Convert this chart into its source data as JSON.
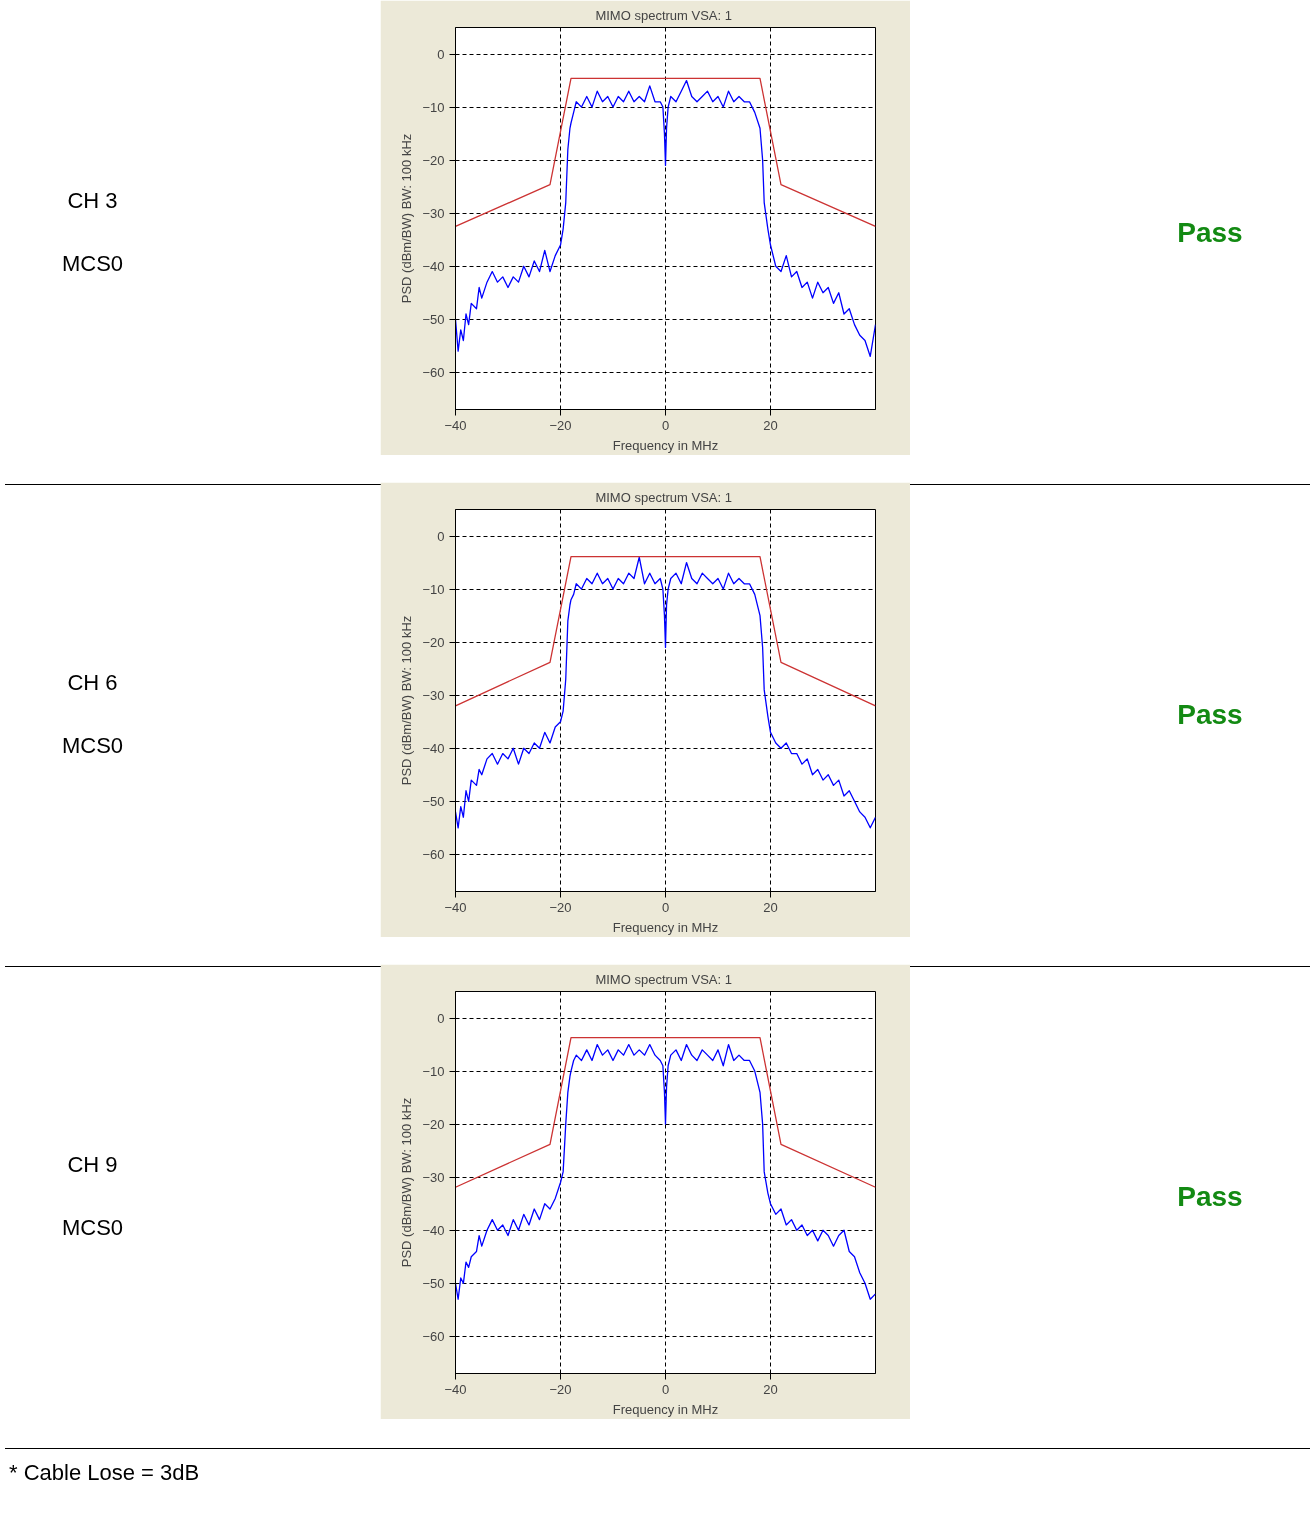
{
  "chart_data": [
    {
      "type": "line",
      "title": "MIMO spectrum VSA:  1",
      "xlabel": "Frequency in MHz",
      "ylabel": "PSD (dBm/BW) BW: 100 kHz",
      "xlim": [
        -40,
        40
      ],
      "ylim": [
        -67,
        5
      ],
      "xticks": [
        -40,
        -20,
        0,
        20
      ],
      "yticks": [
        0,
        -10,
        -20,
        -30,
        -40,
        -50,
        -60
      ],
      "grid": true,
      "annotations": [
        "CH 3",
        "MCS0",
        "Pass"
      ],
      "series": [
        {
          "color": "#0000ff",
          "x": [
            -40,
            -39.5,
            -39,
            -38.5,
            -38,
            -37.5,
            -37,
            -36,
            -35.5,
            -35,
            -34,
            -33,
            -32,
            -31,
            -30,
            -29,
            -28,
            -27,
            -26,
            -25,
            -24,
            -23,
            -22,
            -21,
            -20,
            -19.5,
            -19,
            -18.6,
            -18.2,
            -18,
            -17.5,
            -17,
            -16,
            -15,
            -14,
            -13,
            -12,
            -11,
            -10,
            -9,
            -8,
            -7,
            -6,
            -5,
            -4,
            -3,
            -2,
            -1,
            -0.5,
            -0.2,
            0,
            0.2,
            0.5,
            1,
            2,
            3,
            4,
            5,
            6,
            7,
            8,
            9,
            10,
            11,
            12,
            13,
            14,
            15,
            16,
            17,
            18,
            18.5,
            18.8,
            19.5,
            20,
            21,
            22,
            23,
            24,
            25,
            26,
            27,
            28,
            29,
            30,
            31,
            32,
            33,
            34,
            35,
            36,
            37,
            38,
            39,
            40
          ],
          "values": [
            -50,
            -56,
            -52,
            -54,
            -49,
            -51,
            -47,
            -48,
            -44,
            -46,
            -43,
            -41,
            -43,
            -42,
            -44,
            -42,
            -43,
            -40,
            -42,
            -39,
            -41,
            -37,
            -41,
            -38,
            -36,
            -33,
            -28,
            -18,
            -14,
            -13,
            -11,
            -9,
            -10,
            -8,
            -10,
            -7,
            -9,
            -8,
            -10,
            -8,
            -9,
            -7,
            -9,
            -8,
            -9,
            -6,
            -9,
            -9,
            -10,
            -15,
            -21,
            -14,
            -10,
            -8,
            -9,
            -7,
            -5,
            -8,
            -9,
            -8,
            -7,
            -9,
            -8,
            -10,
            -7,
            -9,
            -8,
            -9,
            -9,
            -11,
            -14,
            -20,
            -28,
            -33,
            -36,
            -40,
            -41,
            -38,
            -42,
            -41,
            -44,
            -43,
            -46,
            -43,
            -45,
            -44,
            -47,
            -45,
            -49,
            -48,
            -51,
            -53,
            -54,
            -57,
            -51
          ]
        },
        {
          "color": "#cc3333",
          "x": [
            -40,
            -22,
            -18,
            18,
            22,
            40
          ],
          "values": [
            -32.5,
            -24.6,
            -4.6,
            -4.6,
            -24.6,
            -32.5
          ]
        }
      ]
    },
    {
      "type": "line",
      "title": "MIMO spectrum VSA:  1",
      "xlabel": "Frequency in MHz",
      "ylabel": "PSD (dBm/BW) BW: 100 kHz",
      "xlim": [
        -40,
        40
      ],
      "ylim": [
        -67,
        5
      ],
      "xticks": [
        -40,
        -20,
        0,
        20
      ],
      "yticks": [
        0,
        -10,
        -20,
        -30,
        -40,
        -50,
        -60
      ],
      "grid": true,
      "annotations": [
        "CH 6",
        "MCS0",
        "Pass"
      ],
      "series": [
        {
          "color": "#0000ff",
          "x": [
            -40,
            -39.5,
            -39,
            -38.5,
            -38,
            -37.5,
            -37,
            -36,
            -35.5,
            -35,
            -34,
            -33,
            -32,
            -31,
            -30,
            -29,
            -28,
            -27,
            -26,
            -25,
            -24,
            -23,
            -22,
            -21,
            -20,
            -19.5,
            -19,
            -18.6,
            -18.2,
            -18,
            -17.5,
            -17,
            -16,
            -15,
            -14,
            -13,
            -12,
            -11,
            -10,
            -9,
            -8,
            -7,
            -6,
            -5,
            -4,
            -3,
            -2,
            -1,
            -0.5,
            -0.2,
            0,
            0.2,
            0.5,
            1,
            2,
            3,
            4,
            5,
            6,
            7,
            8,
            9,
            10,
            11,
            12,
            13,
            14,
            15,
            16,
            17,
            18,
            18.5,
            18.8,
            19.5,
            20,
            21,
            22,
            23,
            24,
            25,
            26,
            27,
            28,
            29,
            30,
            31,
            32,
            33,
            34,
            35,
            36,
            37,
            38,
            39,
            40
          ],
          "values": [
            -52,
            -55,
            -51,
            -53,
            -48,
            -50,
            -46,
            -47,
            -44,
            -45,
            -42,
            -41,
            -43,
            -41,
            -42,
            -40,
            -43,
            -40,
            -41,
            -39,
            -40,
            -37,
            -39,
            -36,
            -35,
            -33,
            -27,
            -16,
            -13,
            -12,
            -11,
            -9,
            -10,
            -8,
            -9,
            -7,
            -9,
            -8,
            -10,
            -8,
            -9,
            -7,
            -8,
            -4,
            -9,
            -7,
            -9,
            -8,
            -10,
            -15,
            -21,
            -13,
            -10,
            -8,
            -7,
            -9,
            -5,
            -8,
            -9,
            -7,
            -8,
            -9,
            -8,
            -10,
            -7,
            -9,
            -8,
            -9,
            -9,
            -11,
            -15,
            -21,
            -29,
            -34,
            -37,
            -39,
            -40,
            -39,
            -41,
            -41,
            -43,
            -42,
            -45,
            -44,
            -46,
            -45,
            -47,
            -46,
            -49,
            -48,
            -50,
            -52,
            -53,
            -55,
            -53
          ]
        },
        {
          "color": "#cc3333",
          "x": [
            -40,
            -22,
            -18,
            18,
            22,
            40
          ],
          "values": [
            -32,
            -23.8,
            -3.9,
            -3.9,
            -23.8,
            -32
          ]
        }
      ]
    },
    {
      "type": "line",
      "title": "MIMO spectrum VSA:  1",
      "xlabel": "Frequency in MHz",
      "ylabel": "PSD (dBm/BW) BW: 100 kHz",
      "xlim": [
        -40,
        40
      ],
      "ylim": [
        -67,
        5
      ],
      "xticks": [
        -40,
        -20,
        0,
        20
      ],
      "yticks": [
        0,
        -10,
        -20,
        -30,
        -40,
        -50,
        -60
      ],
      "grid": true,
      "annotations": [
        "CH 9",
        "MCS0",
        "Pass",
        "* Cable Lose = 3dB"
      ],
      "series": [
        {
          "color": "#0000ff",
          "x": [
            -40,
            -39.5,
            -39,
            -38.5,
            -38,
            -37.5,
            -37,
            -36,
            -35.5,
            -35,
            -34,
            -33,
            -32,
            -31,
            -30,
            -29,
            -28,
            -27,
            -26,
            -25,
            -24,
            -23,
            -22,
            -21,
            -20,
            -19.5,
            -19,
            -18.6,
            -18.2,
            -18,
            -17.5,
            -17,
            -16,
            -15,
            -14,
            -13,
            -12,
            -11,
            -10,
            -9,
            -8,
            -7,
            -6,
            -5,
            -4,
            -3,
            -2,
            -1,
            -0.5,
            -0.2,
            0,
            0.2,
            0.5,
            1,
            2,
            3,
            4,
            5,
            6,
            7,
            8,
            9,
            10,
            11,
            12,
            13,
            14,
            15,
            16,
            17,
            18,
            18.5,
            18.8,
            19.5,
            20,
            21,
            22,
            23,
            24,
            25,
            26,
            27,
            28,
            29,
            30,
            31,
            32,
            33,
            34,
            35,
            36,
            37,
            38,
            39,
            40
          ],
          "values": [
            -50,
            -53,
            -49,
            -50,
            -46,
            -47,
            -45,
            -44,
            -41,
            -43,
            -40,
            -38,
            -40,
            -39,
            -41,
            -38,
            -40,
            -37,
            -39,
            -36,
            -38,
            -35,
            -36,
            -34,
            -31,
            -29,
            -20,
            -14,
            -11,
            -10,
            -8,
            -7,
            -8,
            -6,
            -8,
            -5,
            -7,
            -6,
            -8,
            -6,
            -7,
            -5,
            -7,
            -6,
            -7,
            -5,
            -7,
            -8,
            -9,
            -14,
            -20,
            -13,
            -9,
            -7,
            -6,
            -8,
            -5,
            -7,
            -8,
            -6,
            -7,
            -8,
            -6,
            -9,
            -5,
            -8,
            -7,
            -8,
            -8,
            -10,
            -14,
            -20,
            -29,
            -33,
            -35,
            -37,
            -36,
            -39,
            -38,
            -40,
            -39,
            -41,
            -40,
            -42,
            -40,
            -41,
            -43,
            -41,
            -40,
            -44,
            -45,
            -48,
            -50,
            -53,
            -52
          ]
        },
        {
          "color": "#cc3333",
          "x": [
            -40,
            -22,
            -18,
            18,
            22,
            40
          ],
          "values": [
            -31.9,
            -23.8,
            -3.7,
            -3.7,
            -23.8,
            -31.9
          ]
        }
      ]
    }
  ]
}
